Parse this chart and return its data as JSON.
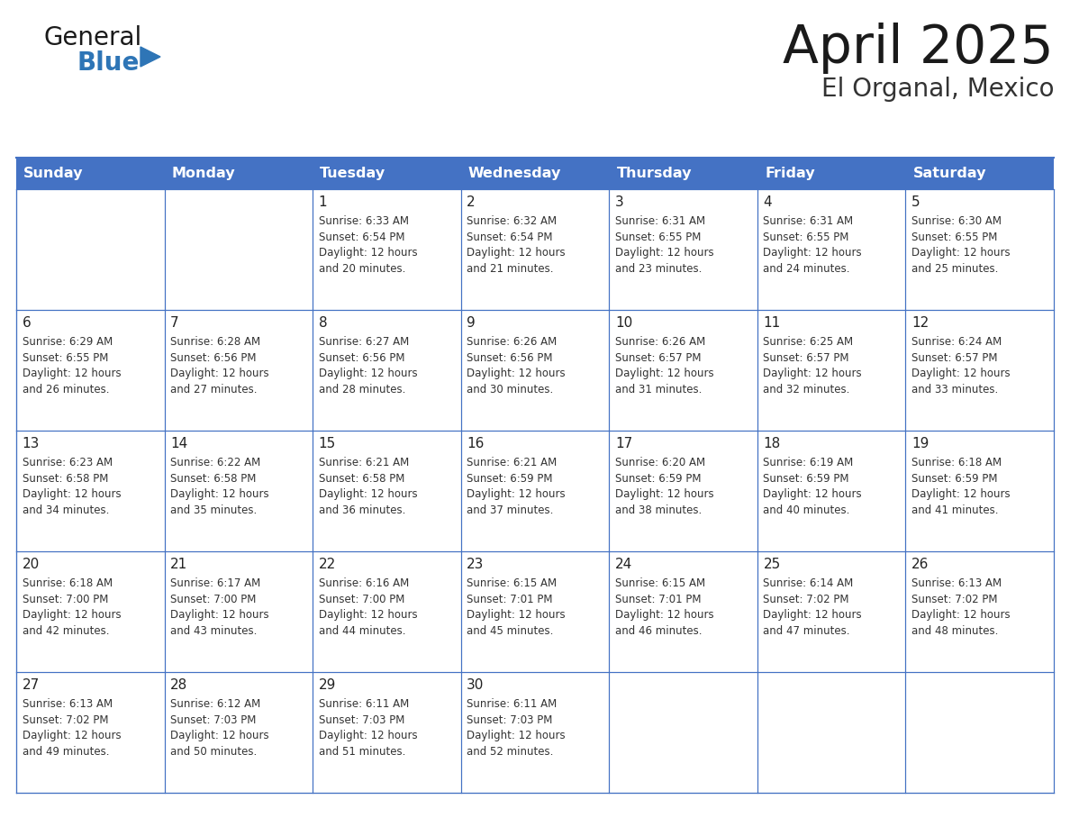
{
  "title": "April 2025",
  "subtitle": "El Organal, Mexico",
  "header_color": "#4472C4",
  "header_text_color": "#FFFFFF",
  "cell_bg_color": "#FFFFFF",
  "border_color": "#4472C4",
  "day_names": [
    "Sunday",
    "Monday",
    "Tuesday",
    "Wednesday",
    "Thursday",
    "Friday",
    "Saturday"
  ],
  "title_color": "#1a1a1a",
  "subtitle_color": "#333333",
  "day_number_color": "#222222",
  "cell_text_color": "#333333",
  "logo_general_color": "#1a1a1a",
  "logo_blue_color": "#2E75B6",
  "weeks": [
    [
      {
        "day": 0,
        "data": ""
      },
      {
        "day": 0,
        "data": ""
      },
      {
        "day": 1,
        "data": "Sunrise: 6:33 AM\nSunset: 6:54 PM\nDaylight: 12 hours\nand 20 minutes."
      },
      {
        "day": 2,
        "data": "Sunrise: 6:32 AM\nSunset: 6:54 PM\nDaylight: 12 hours\nand 21 minutes."
      },
      {
        "day": 3,
        "data": "Sunrise: 6:31 AM\nSunset: 6:55 PM\nDaylight: 12 hours\nand 23 minutes."
      },
      {
        "day": 4,
        "data": "Sunrise: 6:31 AM\nSunset: 6:55 PM\nDaylight: 12 hours\nand 24 minutes."
      },
      {
        "day": 5,
        "data": "Sunrise: 6:30 AM\nSunset: 6:55 PM\nDaylight: 12 hours\nand 25 minutes."
      }
    ],
    [
      {
        "day": 6,
        "data": "Sunrise: 6:29 AM\nSunset: 6:55 PM\nDaylight: 12 hours\nand 26 minutes."
      },
      {
        "day": 7,
        "data": "Sunrise: 6:28 AM\nSunset: 6:56 PM\nDaylight: 12 hours\nand 27 minutes."
      },
      {
        "day": 8,
        "data": "Sunrise: 6:27 AM\nSunset: 6:56 PM\nDaylight: 12 hours\nand 28 minutes."
      },
      {
        "day": 9,
        "data": "Sunrise: 6:26 AM\nSunset: 6:56 PM\nDaylight: 12 hours\nand 30 minutes."
      },
      {
        "day": 10,
        "data": "Sunrise: 6:26 AM\nSunset: 6:57 PM\nDaylight: 12 hours\nand 31 minutes."
      },
      {
        "day": 11,
        "data": "Sunrise: 6:25 AM\nSunset: 6:57 PM\nDaylight: 12 hours\nand 32 minutes."
      },
      {
        "day": 12,
        "data": "Sunrise: 6:24 AM\nSunset: 6:57 PM\nDaylight: 12 hours\nand 33 minutes."
      }
    ],
    [
      {
        "day": 13,
        "data": "Sunrise: 6:23 AM\nSunset: 6:58 PM\nDaylight: 12 hours\nand 34 minutes."
      },
      {
        "day": 14,
        "data": "Sunrise: 6:22 AM\nSunset: 6:58 PM\nDaylight: 12 hours\nand 35 minutes."
      },
      {
        "day": 15,
        "data": "Sunrise: 6:21 AM\nSunset: 6:58 PM\nDaylight: 12 hours\nand 36 minutes."
      },
      {
        "day": 16,
        "data": "Sunrise: 6:21 AM\nSunset: 6:59 PM\nDaylight: 12 hours\nand 37 minutes."
      },
      {
        "day": 17,
        "data": "Sunrise: 6:20 AM\nSunset: 6:59 PM\nDaylight: 12 hours\nand 38 minutes."
      },
      {
        "day": 18,
        "data": "Sunrise: 6:19 AM\nSunset: 6:59 PM\nDaylight: 12 hours\nand 40 minutes."
      },
      {
        "day": 19,
        "data": "Sunrise: 6:18 AM\nSunset: 6:59 PM\nDaylight: 12 hours\nand 41 minutes."
      }
    ],
    [
      {
        "day": 20,
        "data": "Sunrise: 6:18 AM\nSunset: 7:00 PM\nDaylight: 12 hours\nand 42 minutes."
      },
      {
        "day": 21,
        "data": "Sunrise: 6:17 AM\nSunset: 7:00 PM\nDaylight: 12 hours\nand 43 minutes."
      },
      {
        "day": 22,
        "data": "Sunrise: 6:16 AM\nSunset: 7:00 PM\nDaylight: 12 hours\nand 44 minutes."
      },
      {
        "day": 23,
        "data": "Sunrise: 6:15 AM\nSunset: 7:01 PM\nDaylight: 12 hours\nand 45 minutes."
      },
      {
        "day": 24,
        "data": "Sunrise: 6:15 AM\nSunset: 7:01 PM\nDaylight: 12 hours\nand 46 minutes."
      },
      {
        "day": 25,
        "data": "Sunrise: 6:14 AM\nSunset: 7:02 PM\nDaylight: 12 hours\nand 47 minutes."
      },
      {
        "day": 26,
        "data": "Sunrise: 6:13 AM\nSunset: 7:02 PM\nDaylight: 12 hours\nand 48 minutes."
      }
    ],
    [
      {
        "day": 27,
        "data": "Sunrise: 6:13 AM\nSunset: 7:02 PM\nDaylight: 12 hours\nand 49 minutes."
      },
      {
        "day": 28,
        "data": "Sunrise: 6:12 AM\nSunset: 7:03 PM\nDaylight: 12 hours\nand 50 minutes."
      },
      {
        "day": 29,
        "data": "Sunrise: 6:11 AM\nSunset: 7:03 PM\nDaylight: 12 hours\nand 51 minutes."
      },
      {
        "day": 30,
        "data": "Sunrise: 6:11 AM\nSunset: 7:03 PM\nDaylight: 12 hours\nand 52 minutes."
      },
      {
        "day": 0,
        "data": ""
      },
      {
        "day": 0,
        "data": ""
      },
      {
        "day": 0,
        "data": ""
      }
    ]
  ],
  "fig_width": 11.88,
  "fig_height": 9.18,
  "dpi": 100
}
